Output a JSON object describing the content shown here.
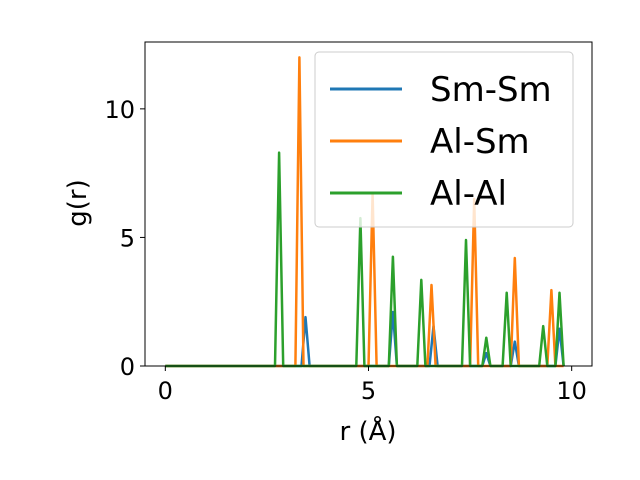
{
  "chart_data": {
    "type": "line",
    "title": "",
    "xlabel": "r (Å)",
    "ylabel": "g(r)",
    "xlim": [
      -0.5,
      10.5
    ],
    "ylim": [
      0,
      12.6
    ],
    "x_ticks": [
      0,
      5,
      10
    ],
    "y_ticks": [
      0,
      5,
      10
    ],
    "x_tick_labels": [
      "0",
      "5",
      "10"
    ],
    "y_tick_labels": [
      "0",
      "5",
      "10"
    ],
    "grid": false,
    "legend_position": "top-right",
    "series": [
      {
        "name": "Sm-Sm",
        "color": "#1f77b4",
        "x": [
          0,
          3.35,
          3.45,
          3.55,
          5.5,
          5.6,
          5.7,
          6.5,
          6.6,
          6.7,
          7.8,
          7.9,
          8.0,
          8.5,
          8.6,
          8.7,
          9.6,
          9.7,
          9.8
        ],
        "y": [
          0,
          0,
          1.9,
          0,
          0,
          2.1,
          0,
          0,
          1.55,
          0,
          0,
          0.5,
          0,
          0,
          0.95,
          0,
          0,
          1.45,
          0
        ]
      },
      {
        "name": "Al-Sm",
        "color": "#ff7f0e",
        "x": [
          0,
          3.2,
          3.3,
          3.4,
          5.0,
          5.1,
          5.2,
          6.45,
          6.55,
          6.65,
          7.5,
          7.6,
          7.7,
          8.5,
          8.6,
          8.7,
          9.4,
          9.5,
          9.6,
          9.8
        ],
        "y": [
          0,
          0,
          12.0,
          0,
          0,
          6.7,
          0,
          0,
          3.15,
          0,
          0,
          6.5,
          0,
          0,
          4.2,
          0,
          0,
          2.95,
          0,
          0
        ]
      },
      {
        "name": "Al-Al",
        "color": "#2ca02c",
        "x": [
          0,
          2.7,
          2.8,
          2.9,
          4.7,
          4.8,
          4.9,
          5.5,
          5.6,
          5.7,
          6.2,
          6.3,
          6.4,
          7.3,
          7.4,
          7.5,
          7.8,
          7.9,
          8.0,
          8.3,
          8.4,
          8.5,
          9.2,
          9.3,
          9.4,
          9.6,
          9.7,
          9.8
        ],
        "y": [
          0,
          0,
          8.3,
          0,
          0,
          5.75,
          0,
          0,
          4.25,
          0,
          0,
          3.35,
          0,
          0,
          4.9,
          0,
          0,
          1.1,
          0,
          0,
          2.85,
          0,
          0,
          1.55,
          0,
          0,
          2.85,
          0
        ]
      }
    ]
  }
}
